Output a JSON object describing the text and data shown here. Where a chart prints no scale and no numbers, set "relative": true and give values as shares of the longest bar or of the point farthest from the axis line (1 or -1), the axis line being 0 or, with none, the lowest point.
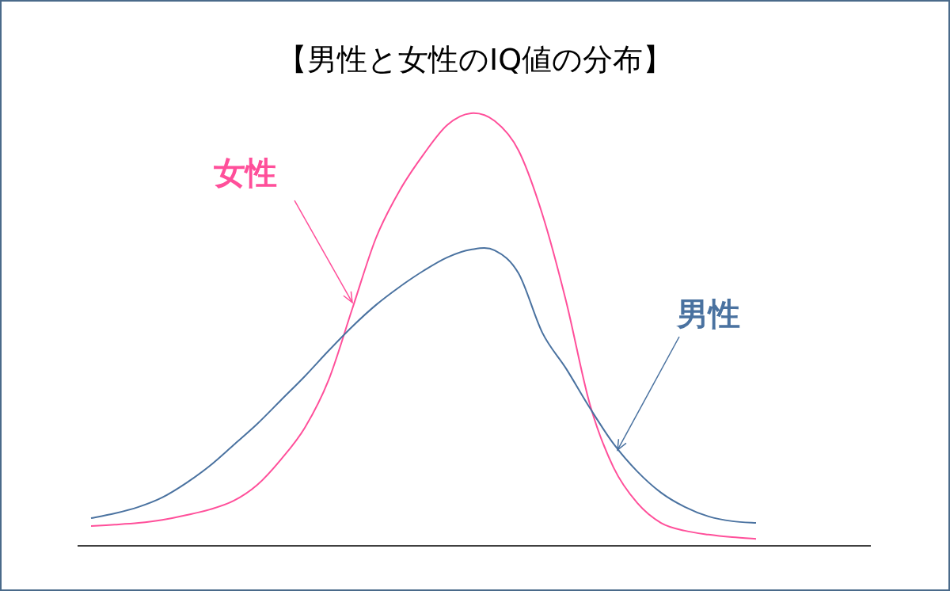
{
  "chart_data": {
    "type": "line",
    "title": "【男性と女性のIQ値の分布】",
    "relative": true,
    "categories": [
      null,
      null,
      null,
      null,
      null,
      null,
      null,
      null,
      null,
      null,
      null,
      null,
      null,
      null,
      null,
      null,
      null,
      null,
      null,
      null,
      null,
      null,
      null,
      null,
      null,
      null,
      null,
      null,
      null
    ],
    "series": [
      {
        "name": "女性",
        "color": "#ff4f9a",
        "values": [
          0.046,
          0.049,
          0.053,
          0.06,
          0.071,
          0.084,
          0.104,
          0.141,
          0.2,
          0.273,
          0.383,
          0.548,
          0.712,
          0.822,
          0.905,
          0.973,
          1,
          0.982,
          0.914,
          0.767,
          0.566,
          0.328,
          0.181,
          0.099,
          0.053,
          0.035,
          0.026,
          0.02,
          0.016
        ]
      },
      {
        "name": "男性",
        "color": "#4a72a0",
        "values": [
          0.064,
          0.075,
          0.09,
          0.112,
          0.145,
          0.185,
          0.233,
          0.282,
          0.337,
          0.392,
          0.451,
          0.507,
          0.557,
          0.599,
          0.636,
          0.667,
          0.685,
          0.683,
          0.63,
          0.493,
          0.41,
          0.319,
          0.236,
          0.172,
          0.123,
          0.09,
          0.068,
          0.057,
          0.053
        ]
      }
    ]
  }
}
